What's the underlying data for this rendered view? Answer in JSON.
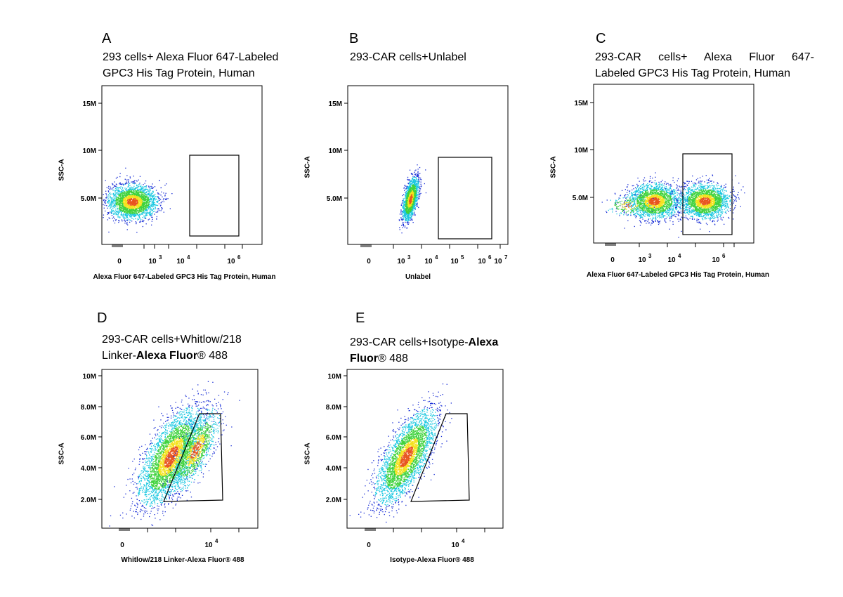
{
  "panels": [
    {
      "letter": "A",
      "title_lines": [
        "293 cells+ Alexa Fluor 647-Labeled",
        "GPC3 His Tag Protein, Human"
      ],
      "ylabel": "SSC-A",
      "xlabel": "Alexa Fluor 647-Labeled GPC3 His Tag Protein, Human",
      "y_ticks": [
        "15M",
        "10M",
        "5.0M"
      ],
      "x_ticks": [
        {
          "label": "0",
          "sup": ""
        },
        {
          "label": "10",
          "sup": "3"
        },
        {
          "label": "10",
          "sup": "4"
        },
        {
          "label": "10",
          "sup": "6"
        }
      ]
    },
    {
      "letter": "B",
      "title_lines": [
        "293-CAR cells+Unlabel"
      ],
      "ylabel": "SSC-A",
      "xlabel": "Unlabel",
      "y_ticks": [
        "15M",
        "10M",
        "5.0M"
      ],
      "x_ticks": [
        {
          "label": "0",
          "sup": ""
        },
        {
          "label": "10",
          "sup": "3"
        },
        {
          "label": "10",
          "sup": "4"
        },
        {
          "label": "10",
          "sup": "5"
        },
        {
          "label": "10",
          "sup": "6"
        },
        {
          "label": "10",
          "sup": "7"
        }
      ]
    },
    {
      "letter": "C",
      "title_lines": [
        "293-CAR cells+ Alexa Fluor 647-",
        "Labeled GPC3 His Tag Protein, Human"
      ],
      "ylabel": "SSC-A",
      "xlabel": "Alexa Fluor 647-Labeled GPC3 His Tag Protein, Human",
      "y_ticks": [
        "15M",
        "10M",
        "5.0M"
      ],
      "x_ticks": [
        {
          "label": "0",
          "sup": ""
        },
        {
          "label": "10",
          "sup": "3"
        },
        {
          "label": "10",
          "sup": "4"
        },
        {
          "label": "10",
          "sup": "6"
        }
      ]
    },
    {
      "letter": "D",
      "title_line1": "293-CAR cells+Whitlow/218",
      "title_line2_plain": "Linker-",
      "title_line2_bold": "Alexa Fluor",
      "title_line2_tail": "® 488",
      "ylabel": "SSC-A",
      "xlabel": "Whitlow/218 Linker-Alexa Fluor® 488",
      "y_ticks": [
        "10M",
        "8.0M",
        "6.0M",
        "4.0M",
        "2.0M"
      ],
      "x_ticks": [
        {
          "label": "0",
          "sup": ""
        },
        {
          "label": "10",
          "sup": "4"
        }
      ]
    },
    {
      "letter": "E",
      "title_line1_plain": "293-CAR cells+Isotype-",
      "title_line1_bold": "Alexa",
      "title_line2_bold": "Fluor",
      "title_line2_tail": "® 488",
      "ylabel": "SSC-A",
      "xlabel": "Isotype-Alexa Fluor® 488",
      "y_ticks": [
        "10M",
        "8.0M",
        "6.0M",
        "4.0M",
        "2.0M"
      ],
      "x_ticks": [
        {
          "label": "0",
          "sup": ""
        },
        {
          "label": "10",
          "sup": "4"
        }
      ]
    }
  ],
  "colors": {
    "density_low": "#1a2fd6",
    "density_mid": "#19c7e0",
    "density_high": "#3fd23c",
    "density_peak": "#f4e21c",
    "density_top": "#e8541f",
    "gate": "#000000"
  },
  "chart_data": [
    {
      "type": "scatter",
      "panel": "A",
      "xlabel": "Alexa Fluor 647-Labeled GPC3 His Tag Protein, Human",
      "ylabel": "SSC-A",
      "y_ticks": [
        "15M",
        "10M",
        "5.0M"
      ],
      "x_ticks": [
        "0",
        "10^3",
        "10^4",
        "10^6"
      ],
      "populations": [
        {
          "x_center": "≈10^2",
          "y_center": 4000000,
          "y_range": [
            2500000,
            6000000
          ]
        }
      ],
      "gate": {
        "shape": "rectangle",
        "x_range": [
          "≈10^5",
          "≈10^6"
        ],
        "y_range": [
          1000000,
          9500000
        ]
      }
    },
    {
      "type": "scatter",
      "panel": "B",
      "xlabel": "Unlabel",
      "ylabel": "SSC-A",
      "y_ticks": [
        "15M",
        "10M",
        "5.0M"
      ],
      "x_ticks": [
        "0",
        "10^3",
        "10^4",
        "10^5",
        "10^6",
        "10^7"
      ],
      "populations": [
        {
          "x_center": "≈10^3.5",
          "y_center": 4800000,
          "y_range": [
            2500000,
            7300000
          ]
        }
      ],
      "gate": {
        "shape": "rectangle",
        "x_range": [
          "≈10^4.5",
          "≈10^6.8"
        ],
        "y_range": [
          700000,
          9300000
        ]
      }
    },
    {
      "type": "scatter",
      "panel": "C",
      "xlabel": "Alexa Fluor 647-Labeled GPC3 His Tag Protein, Human",
      "ylabel": "SSC-A",
      "y_ticks": [
        "15M",
        "10M",
        "5.0M"
      ],
      "x_ticks": [
        "0",
        "10^3",
        "10^4",
        "10^6"
      ],
      "populations": [
        {
          "x_center": "≈10^3",
          "y_center": 4200000
        },
        {
          "x_center": "≈10^5",
          "y_center": 4200000
        }
      ],
      "gate": {
        "shape": "rectangle",
        "x_range": [
          "≈10^4.3",
          "≈10^6.3"
        ],
        "y_range": [
          1000000,
          9500000
        ]
      }
    },
    {
      "type": "scatter",
      "panel": "D",
      "xlabel": "Whitlow/218 Linker-Alexa Fluor® 488",
      "ylabel": "SSC-A",
      "y_ticks": [
        "10M",
        "8.0M",
        "6.0M",
        "4.0M",
        "2.0M"
      ],
      "x_ticks": [
        "0",
        "10^4"
      ],
      "populations": [
        {
          "description": "diagonal population",
          "y_range": [
            2500000,
            7300000
          ]
        }
      ],
      "gate": {
        "shape": "polygon",
        "y_range": [
          1800000,
          7500000
        ]
      }
    },
    {
      "type": "scatter",
      "panel": "E",
      "xlabel": "Isotype-Alexa Fluor® 488",
      "ylabel": "SSC-A",
      "y_ticks": [
        "10M",
        "8.0M",
        "6.0M",
        "4.0M",
        "2.0M"
      ],
      "x_ticks": [
        "0",
        "10^4"
      ],
      "populations": [
        {
          "description": "diagonal population",
          "y_range": [
            2500000,
            7300000
          ]
        }
      ],
      "gate": {
        "shape": "polygon",
        "y_range": [
          1800000,
          7500000
        ]
      }
    }
  ]
}
